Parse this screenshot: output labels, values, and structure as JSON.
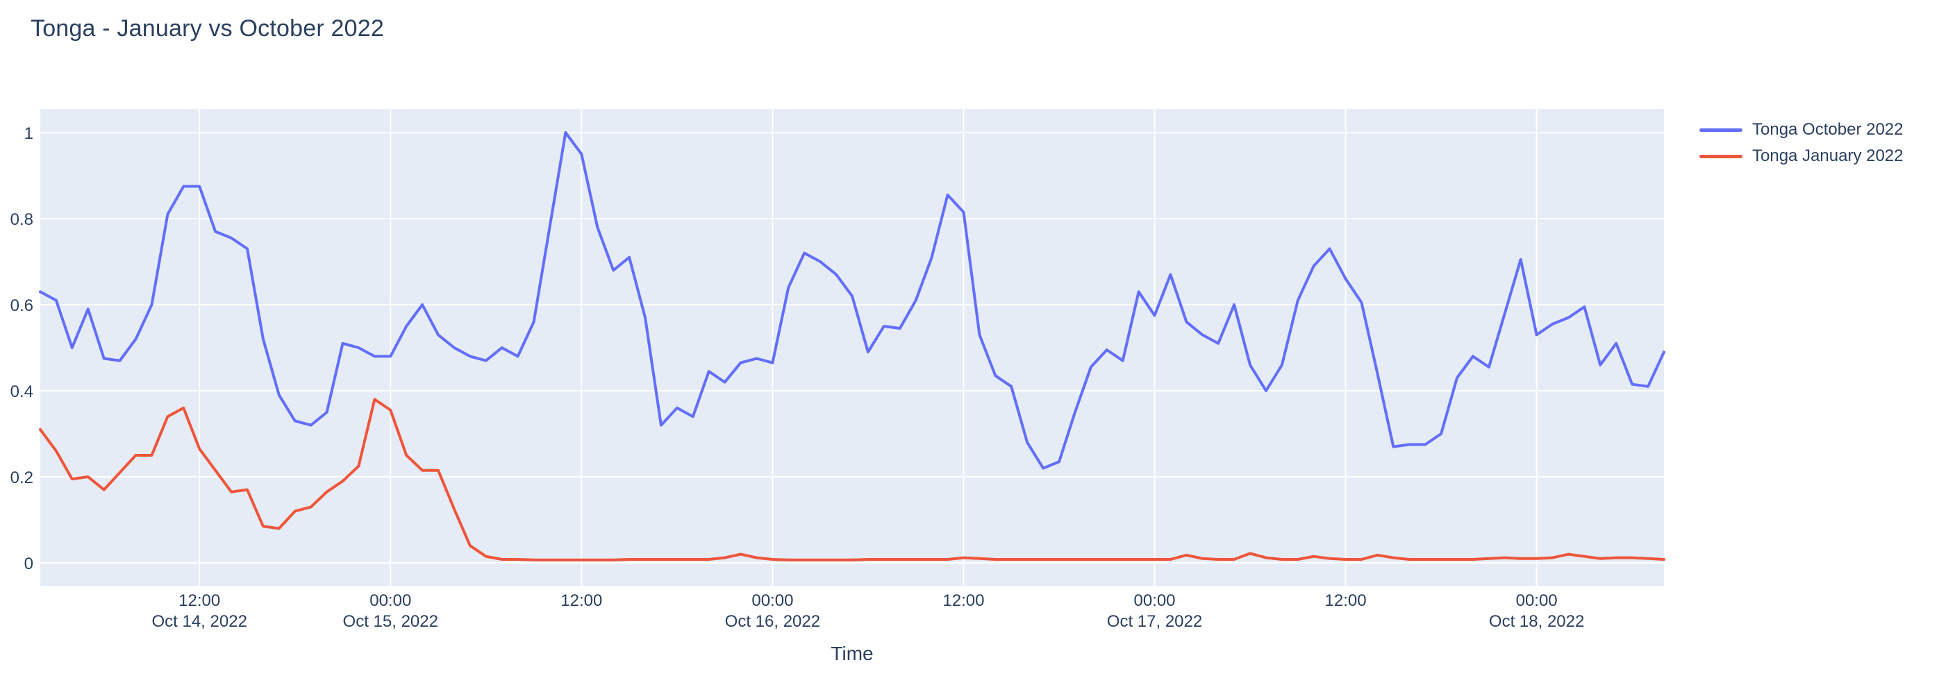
{
  "title": "Tonga - January vs October 2022",
  "colors": {
    "accent_october": "#636efa",
    "accent_january": "#ef553b",
    "plot_background": "#e5ecf6",
    "gridline": "#ffffff",
    "text": "#2a3f5f",
    "page_background": "#ffffff"
  },
  "legend": {
    "items": [
      {
        "label": "Tonga October 2022",
        "color": "#636efa"
      },
      {
        "label": "Tonga January 2022",
        "color": "#ef553b"
      }
    ]
  },
  "chart_data": {
    "type": "line",
    "title": "Tonga - January vs October 2022",
    "xlabel": "Time",
    "ylabel": "",
    "ylim": [
      0,
      1
    ],
    "grid": true,
    "legend_position": "right",
    "x_start": "2022-10-14 02:00",
    "x_step_hours": 1,
    "x_end": "2022-10-18 08:00",
    "y_ticks": [
      0,
      0.2,
      0.4,
      0.6,
      0.8,
      1
    ],
    "x_ticks": [
      {
        "index": 10,
        "time": "12:00",
        "date": "Oct 14, 2022"
      },
      {
        "index": 22,
        "time": "00:00",
        "date": "Oct 15, 2022"
      },
      {
        "index": 34,
        "time": "12:00",
        "date": ""
      },
      {
        "index": 46,
        "time": "00:00",
        "date": "Oct 16, 2022"
      },
      {
        "index": 58,
        "time": "12:00",
        "date": ""
      },
      {
        "index": 70,
        "time": "00:00",
        "date": "Oct 17, 2022"
      },
      {
        "index": 82,
        "time": "12:00",
        "date": ""
      },
      {
        "index": 94,
        "time": "00:00",
        "date": "Oct 18, 2022"
      }
    ],
    "series": [
      {
        "name": "Tonga October 2022",
        "color": "#636efa",
        "values": [
          0.63,
          0.61,
          0.5,
          0.59,
          0.475,
          0.47,
          0.52,
          0.6,
          0.81,
          0.875,
          0.875,
          0.77,
          0.755,
          0.73,
          0.52,
          0.39,
          0.33,
          0.32,
          0.35,
          0.51,
          0.5,
          0.48,
          0.48,
          0.55,
          0.6,
          0.53,
          0.5,
          0.48,
          0.47,
          0.5,
          0.48,
          0.56,
          0.78,
          1.0,
          0.95,
          0.78,
          0.68,
          0.71,
          0.57,
          0.32,
          0.36,
          0.34,
          0.445,
          0.42,
          0.465,
          0.475,
          0.465,
          0.64,
          0.72,
          0.7,
          0.67,
          0.62,
          0.49,
          0.55,
          0.545,
          0.61,
          0.71,
          0.855,
          0.815,
          0.53,
          0.435,
          0.41,
          0.28,
          0.22,
          0.235,
          0.35,
          0.455,
          0.495,
          0.47,
          0.63,
          0.575,
          0.67,
          0.56,
          0.53,
          0.51,
          0.6,
          0.46,
          0.4,
          0.46,
          0.61,
          0.69,
          0.73,
          0.66,
          0.605,
          0.44,
          0.27,
          0.275,
          0.275,
          0.3,
          0.43,
          0.48,
          0.455,
          0.58,
          0.705,
          0.53,
          0.555,
          0.57,
          0.595,
          0.46,
          0.51,
          0.415,
          0.41,
          0.49
        ]
      },
      {
        "name": "Tonga January 2022",
        "color": "#ef553b",
        "values": [
          0.31,
          0.26,
          0.195,
          0.2,
          0.17,
          0.21,
          0.25,
          0.25,
          0.34,
          0.36,
          0.265,
          0.215,
          0.165,
          0.17,
          0.085,
          0.08,
          0.12,
          0.13,
          0.165,
          0.19,
          0.225,
          0.38,
          0.355,
          0.25,
          0.215,
          0.215,
          0.125,
          0.04,
          0.015,
          0.008,
          0.008,
          0.007,
          0.007,
          0.007,
          0.007,
          0.007,
          0.007,
          0.008,
          0.008,
          0.008,
          0.008,
          0.008,
          0.008,
          0.012,
          0.02,
          0.012,
          0.008,
          0.007,
          0.007,
          0.007,
          0.007,
          0.007,
          0.008,
          0.008,
          0.008,
          0.008,
          0.008,
          0.008,
          0.012,
          0.01,
          0.008,
          0.008,
          0.008,
          0.008,
          0.008,
          0.008,
          0.008,
          0.008,
          0.008,
          0.008,
          0.008,
          0.008,
          0.018,
          0.01,
          0.008,
          0.008,
          0.022,
          0.012,
          0.008,
          0.008,
          0.015,
          0.01,
          0.008,
          0.008,
          0.018,
          0.012,
          0.008,
          0.008,
          0.008,
          0.008,
          0.008,
          0.01,
          0.012,
          0.01,
          0.01,
          0.012,
          0.02,
          0.015,
          0.01,
          0.012,
          0.012,
          0.01,
          0.008
        ]
      }
    ]
  }
}
